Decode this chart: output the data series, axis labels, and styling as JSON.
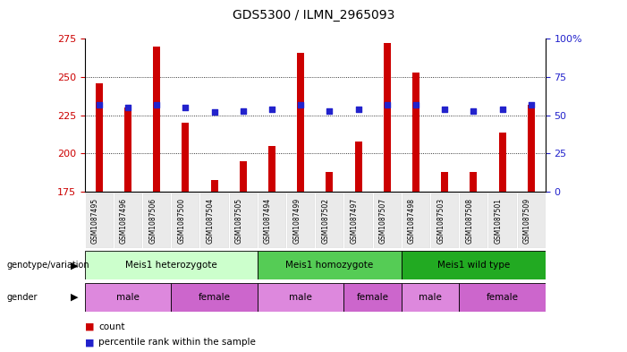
{
  "title": "GDS5300 / ILMN_2965093",
  "samples": [
    "GSM1087495",
    "GSM1087496",
    "GSM1087506",
    "GSM1087500",
    "GSM1087504",
    "GSM1087505",
    "GSM1087494",
    "GSM1087499",
    "GSM1087502",
    "GSM1087497",
    "GSM1087507",
    "GSM1087498",
    "GSM1087503",
    "GSM1087508",
    "GSM1087501",
    "GSM1087509"
  ],
  "counts": [
    246,
    230,
    270,
    220,
    183,
    195,
    205,
    266,
    188,
    208,
    272,
    253,
    188,
    188,
    214,
    232
  ],
  "percentiles": [
    57,
    55,
    57,
    55,
    52,
    53,
    54,
    57,
    53,
    54,
    57,
    57,
    54,
    53,
    54,
    57
  ],
  "ylim_left": [
    175,
    275
  ],
  "ylim_right": [
    0,
    100
  ],
  "yticks_left": [
    175,
    200,
    225,
    250,
    275
  ],
  "yticks_right": [
    0,
    25,
    50,
    75,
    100
  ],
  "bar_color": "#cc0000",
  "dot_color": "#2222cc",
  "genotype_groups": [
    {
      "label": "Meis1 heterozygote",
      "start": 0,
      "end": 6,
      "color": "#ccffcc"
    },
    {
      "label": "Meis1 homozygote",
      "start": 6,
      "end": 11,
      "color": "#55cc55"
    },
    {
      "label": "Meis1 wild type",
      "start": 11,
      "end": 16,
      "color": "#22aa22"
    }
  ],
  "gender_groups": [
    {
      "label": "male",
      "start": 0,
      "end": 3,
      "color": "#ee88ee"
    },
    {
      "label": "female",
      "start": 3,
      "end": 6,
      "color": "#ee88ee"
    },
    {
      "label": "male",
      "start": 6,
      "end": 9,
      "color": "#ee88ee"
    },
    {
      "label": "female",
      "start": 9,
      "end": 11,
      "color": "#ee88ee"
    },
    {
      "label": "male",
      "start": 11,
      "end": 13,
      "color": "#ee88ee"
    },
    {
      "label": "female",
      "start": 13,
      "end": 16,
      "color": "#ee88ee"
    }
  ],
  "tick_label_color_left": "#cc0000",
  "tick_label_color_right": "#2222cc",
  "bar_width": 0.25,
  "dot_size": 18
}
